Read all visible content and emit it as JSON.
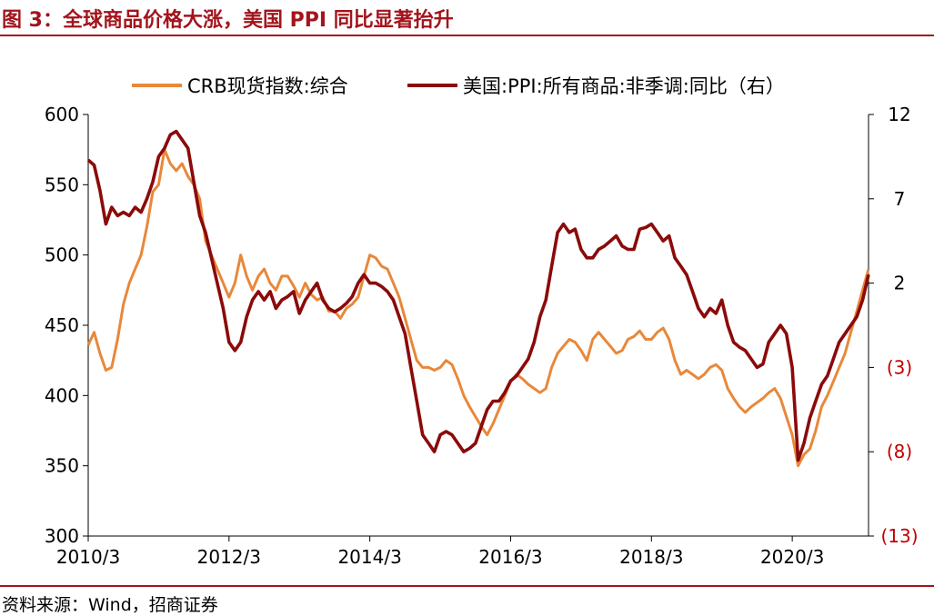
{
  "figure": {
    "title": "图 3：全球商品价格大涨，美国 PPI 同比显著抬升",
    "source": "资料来源：Wind，招商证券"
  },
  "colors": {
    "crb": "#e8883a",
    "ppi": "#8b0a0a",
    "rule": "#a3141c",
    "neg_tick": "#c00000"
  },
  "chart_data": {
    "type": "line",
    "x_range": [
      "2010/3",
      "2021/4"
    ],
    "x_ticks": [
      "2010/3",
      "2012/3",
      "2014/3",
      "2016/3",
      "2018/3",
      "2020/3"
    ],
    "y_left": {
      "ylim": [
        300,
        600
      ],
      "ticks": [
        "600",
        "550",
        "500",
        "450",
        "400",
        "350",
        "300"
      ]
    },
    "y_right": {
      "ylim": [
        -13,
        12
      ],
      "ticks": [
        "12",
        "7",
        "2",
        "(3)",
        "(8)",
        "(13)"
      ]
    },
    "legend": {
      "placement": "top",
      "entries": [
        "CRB现货指数:综合",
        "美国:PPI:所有商品:非季调:同比（右）"
      ]
    },
    "series": [
      {
        "name": "CRB现货指数:综合",
        "axis": "left",
        "points": [
          [
            "2010-03",
            436
          ],
          [
            "2010-04",
            445
          ],
          [
            "2010-05",
            430
          ],
          [
            "2010-06",
            418
          ],
          [
            "2010-07",
            420
          ],
          [
            "2010-08",
            440
          ],
          [
            "2010-09",
            465
          ],
          [
            "2010-10",
            480
          ],
          [
            "2010-11",
            490
          ],
          [
            "2010-12",
            500
          ],
          [
            "2011-01",
            520
          ],
          [
            "2011-02",
            545
          ],
          [
            "2011-03",
            550
          ],
          [
            "2011-04",
            575
          ],
          [
            "2011-05",
            565
          ],
          [
            "2011-06",
            560
          ],
          [
            "2011-07",
            565
          ],
          [
            "2011-08",
            556
          ],
          [
            "2011-09",
            550
          ],
          [
            "2011-10",
            540
          ],
          [
            "2011-11",
            510
          ],
          [
            "2011-12",
            500
          ],
          [
            "2012-01",
            490
          ],
          [
            "2012-02",
            480
          ],
          [
            "2012-03",
            470
          ],
          [
            "2012-04",
            480
          ],
          [
            "2012-05",
            500
          ],
          [
            "2012-06",
            485
          ],
          [
            "2012-07",
            475
          ],
          [
            "2012-08",
            485
          ],
          [
            "2012-09",
            490
          ],
          [
            "2012-10",
            480
          ],
          [
            "2012-11",
            475
          ],
          [
            "2012-12",
            485
          ],
          [
            "2013-01",
            485
          ],
          [
            "2013-02",
            478
          ],
          [
            "2013-03",
            470
          ],
          [
            "2013-04",
            480
          ],
          [
            "2013-05",
            472
          ],
          [
            "2013-06",
            468
          ],
          [
            "2013-07",
            470
          ],
          [
            "2013-08",
            460
          ],
          [
            "2013-09",
            460
          ],
          [
            "2013-10",
            455
          ],
          [
            "2013-11",
            462
          ],
          [
            "2013-12",
            465
          ],
          [
            "2014-01",
            470
          ],
          [
            "2014-02",
            485
          ],
          [
            "2014-03",
            500
          ],
          [
            "2014-04",
            498
          ],
          [
            "2014-05",
            492
          ],
          [
            "2014-06",
            490
          ],
          [
            "2014-07",
            480
          ],
          [
            "2014-08",
            470
          ],
          [
            "2014-09",
            455
          ],
          [
            "2014-10",
            440
          ],
          [
            "2014-11",
            425
          ],
          [
            "2014-12",
            420
          ],
          [
            "2015-01",
            420
          ],
          [
            "2015-02",
            418
          ],
          [
            "2015-03",
            420
          ],
          [
            "2015-04",
            425
          ],
          [
            "2015-05",
            422
          ],
          [
            "2015-06",
            412
          ],
          [
            "2015-07",
            400
          ],
          [
            "2015-08",
            392
          ],
          [
            "2015-09",
            385
          ],
          [
            "2015-10",
            378
          ],
          [
            "2015-11",
            372
          ],
          [
            "2015-12",
            380
          ],
          [
            "2016-01",
            390
          ],
          [
            "2016-02",
            400
          ],
          [
            "2016-03",
            410
          ],
          [
            "2016-04",
            415
          ],
          [
            "2016-05",
            412
          ],
          [
            "2016-06",
            408
          ],
          [
            "2016-07",
            405
          ],
          [
            "2016-08",
            402
          ],
          [
            "2016-09",
            405
          ],
          [
            "2016-10",
            420
          ],
          [
            "2016-11",
            430
          ],
          [
            "2016-12",
            435
          ],
          [
            "2017-01",
            440
          ],
          [
            "2017-02",
            438
          ],
          [
            "2017-03",
            432
          ],
          [
            "2017-04",
            425
          ],
          [
            "2017-05",
            440
          ],
          [
            "2017-06",
            445
          ],
          [
            "2017-07",
            440
          ],
          [
            "2017-08",
            435
          ],
          [
            "2017-09",
            430
          ],
          [
            "2017-10",
            432
          ],
          [
            "2017-11",
            440
          ],
          [
            "2017-12",
            442
          ],
          [
            "2018-01",
            446
          ],
          [
            "2018-02",
            440
          ],
          [
            "2018-03",
            440
          ],
          [
            "2018-04",
            445
          ],
          [
            "2018-05",
            448
          ],
          [
            "2018-06",
            440
          ],
          [
            "2018-07",
            425
          ],
          [
            "2018-08",
            415
          ],
          [
            "2018-09",
            418
          ],
          [
            "2018-10",
            415
          ],
          [
            "2018-11",
            412
          ],
          [
            "2018-12",
            415
          ],
          [
            "2019-01",
            420
          ],
          [
            "2019-02",
            422
          ],
          [
            "2019-03",
            418
          ],
          [
            "2019-04",
            405
          ],
          [
            "2019-05",
            398
          ],
          [
            "2019-06",
            392
          ],
          [
            "2019-07",
            388
          ],
          [
            "2019-08",
            392
          ],
          [
            "2019-09",
            395
          ],
          [
            "2019-10",
            398
          ],
          [
            "2019-11",
            402
          ],
          [
            "2019-12",
            405
          ],
          [
            "2020-01",
            398
          ],
          [
            "2020-02",
            385
          ],
          [
            "2020-03",
            372
          ],
          [
            "2020-04",
            350
          ],
          [
            "2020-05",
            358
          ],
          [
            "2020-06",
            362
          ],
          [
            "2020-07",
            375
          ],
          [
            "2020-08",
            392
          ],
          [
            "2020-09",
            400
          ],
          [
            "2020-10",
            410
          ],
          [
            "2020-11",
            420
          ],
          [
            "2020-12",
            430
          ],
          [
            "2021-01",
            445
          ],
          [
            "2021-02",
            460
          ],
          [
            "2021-03",
            475
          ],
          [
            "2021-04",
            490
          ]
        ]
      },
      {
        "name": "美国:PPI:所有商品:非季调:同比（右）",
        "axis": "right",
        "points": [
          [
            "2010-03",
            9.3
          ],
          [
            "2010-04",
            9.0
          ],
          [
            "2010-05",
            7.5
          ],
          [
            "2010-06",
            5.5
          ],
          [
            "2010-07",
            6.5
          ],
          [
            "2010-08",
            6.0
          ],
          [
            "2010-09",
            6.2
          ],
          [
            "2010-10",
            6.0
          ],
          [
            "2010-11",
            6.5
          ],
          [
            "2010-12",
            6.2
          ],
          [
            "2011-01",
            7.0
          ],
          [
            "2011-02",
            8.0
          ],
          [
            "2011-03",
            9.5
          ],
          [
            "2011-04",
            10.0
          ],
          [
            "2011-05",
            10.8
          ],
          [
            "2011-06",
            11.0
          ],
          [
            "2011-07",
            10.5
          ],
          [
            "2011-08",
            10.0
          ],
          [
            "2011-09",
            8.0
          ],
          [
            "2011-10",
            6.0
          ],
          [
            "2011-11",
            5.0
          ],
          [
            "2011-12",
            3.5
          ],
          [
            "2012-01",
            2.0
          ],
          [
            "2012-02",
            0.5
          ],
          [
            "2012-03",
            -1.5
          ],
          [
            "2012-04",
            -2.0
          ],
          [
            "2012-05",
            -1.5
          ],
          [
            "2012-06",
            0.0
          ],
          [
            "2012-07",
            1.0
          ],
          [
            "2012-08",
            1.5
          ],
          [
            "2012-09",
            1.0
          ],
          [
            "2012-10",
            1.5
          ],
          [
            "2012-11",
            0.5
          ],
          [
            "2012-12",
            1.0
          ],
          [
            "2013-01",
            1.2
          ],
          [
            "2013-02",
            1.5
          ],
          [
            "2013-03",
            0.2
          ],
          [
            "2013-04",
            1.0
          ],
          [
            "2013-05",
            1.5
          ],
          [
            "2013-06",
            2.0
          ],
          [
            "2013-07",
            1.0
          ],
          [
            "2013-08",
            0.5
          ],
          [
            "2013-09",
            0.3
          ],
          [
            "2013-10",
            0.5
          ],
          [
            "2013-11",
            0.8
          ],
          [
            "2013-12",
            1.2
          ],
          [
            "2014-01",
            2.0
          ],
          [
            "2014-02",
            2.5
          ],
          [
            "2014-03",
            2.0
          ],
          [
            "2014-04",
            2.0
          ],
          [
            "2014-05",
            1.8
          ],
          [
            "2014-06",
            1.5
          ],
          [
            "2014-07",
            1.0
          ],
          [
            "2014-08",
            0.0
          ],
          [
            "2014-09",
            -1.0
          ],
          [
            "2014-10",
            -3.0
          ],
          [
            "2014-11",
            -5.0
          ],
          [
            "2014-12",
            -7.0
          ],
          [
            "2015-01",
            -7.5
          ],
          [
            "2015-02",
            -8.0
          ],
          [
            "2015-03",
            -7.0
          ],
          [
            "2015-04",
            -6.8
          ],
          [
            "2015-05",
            -7.0
          ],
          [
            "2015-06",
            -7.5
          ],
          [
            "2015-07",
            -8.0
          ],
          [
            "2015-08",
            -7.8
          ],
          [
            "2015-09",
            -7.5
          ],
          [
            "2015-10",
            -6.5
          ],
          [
            "2015-11",
            -5.5
          ],
          [
            "2015-12",
            -5.0
          ],
          [
            "2016-01",
            -5.0
          ],
          [
            "2016-02",
            -4.5
          ],
          [
            "2016-03",
            -3.8
          ],
          [
            "2016-04",
            -3.5
          ],
          [
            "2016-05",
            -3.0
          ],
          [
            "2016-06",
            -2.5
          ],
          [
            "2016-07",
            -1.5
          ],
          [
            "2016-08",
            0.0
          ],
          [
            "2016-09",
            1.0
          ],
          [
            "2016-10",
            3.0
          ],
          [
            "2016-11",
            5.0
          ],
          [
            "2016-12",
            5.5
          ],
          [
            "2017-01",
            5.0
          ],
          [
            "2017-02",
            5.2
          ],
          [
            "2017-03",
            4.0
          ],
          [
            "2017-04",
            3.5
          ],
          [
            "2017-05",
            3.5
          ],
          [
            "2017-06",
            4.0
          ],
          [
            "2017-07",
            4.2
          ],
          [
            "2017-08",
            4.5
          ],
          [
            "2017-09",
            4.8
          ],
          [
            "2017-10",
            4.2
          ],
          [
            "2017-11",
            4.0
          ],
          [
            "2017-12",
            4.0
          ],
          [
            "2018-01",
            5.2
          ],
          [
            "2018-02",
            5.3
          ],
          [
            "2018-03",
            5.5
          ],
          [
            "2018-04",
            5.0
          ],
          [
            "2018-05",
            4.5
          ],
          [
            "2018-06",
            4.8
          ],
          [
            "2018-07",
            3.5
          ],
          [
            "2018-08",
            3.0
          ],
          [
            "2018-09",
            2.5
          ],
          [
            "2018-10",
            1.5
          ],
          [
            "2018-11",
            0.5
          ],
          [
            "2018-12",
            0.0
          ],
          [
            "2019-01",
            0.5
          ],
          [
            "2019-02",
            0.2
          ],
          [
            "2019-03",
            1.0
          ],
          [
            "2019-04",
            -0.5
          ],
          [
            "2019-05",
            -1.5
          ],
          [
            "2019-06",
            -1.8
          ],
          [
            "2019-07",
            -2.0
          ],
          [
            "2019-08",
            -2.5
          ],
          [
            "2019-09",
            -3.0
          ],
          [
            "2019-10",
            -2.8
          ],
          [
            "2019-11",
            -1.5
          ],
          [
            "2019-12",
            -1.0
          ],
          [
            "2020-01",
            -0.5
          ],
          [
            "2020-02",
            -1.0
          ],
          [
            "2020-03",
            -3.0
          ],
          [
            "2020-04",
            -8.5
          ],
          [
            "2020-05",
            -7.5
          ],
          [
            "2020-06",
            -6.0
          ],
          [
            "2020-07",
            -5.0
          ],
          [
            "2020-08",
            -4.0
          ],
          [
            "2020-09",
            -3.5
          ],
          [
            "2020-10",
            -2.5
          ],
          [
            "2020-11",
            -1.5
          ],
          [
            "2020-12",
            -1.0
          ],
          [
            "2021-01",
            -0.5
          ],
          [
            "2021-02",
            0.0
          ],
          [
            "2021-03",
            1.0
          ],
          [
            "2021-04",
            2.5
          ]
        ]
      }
    ]
  }
}
